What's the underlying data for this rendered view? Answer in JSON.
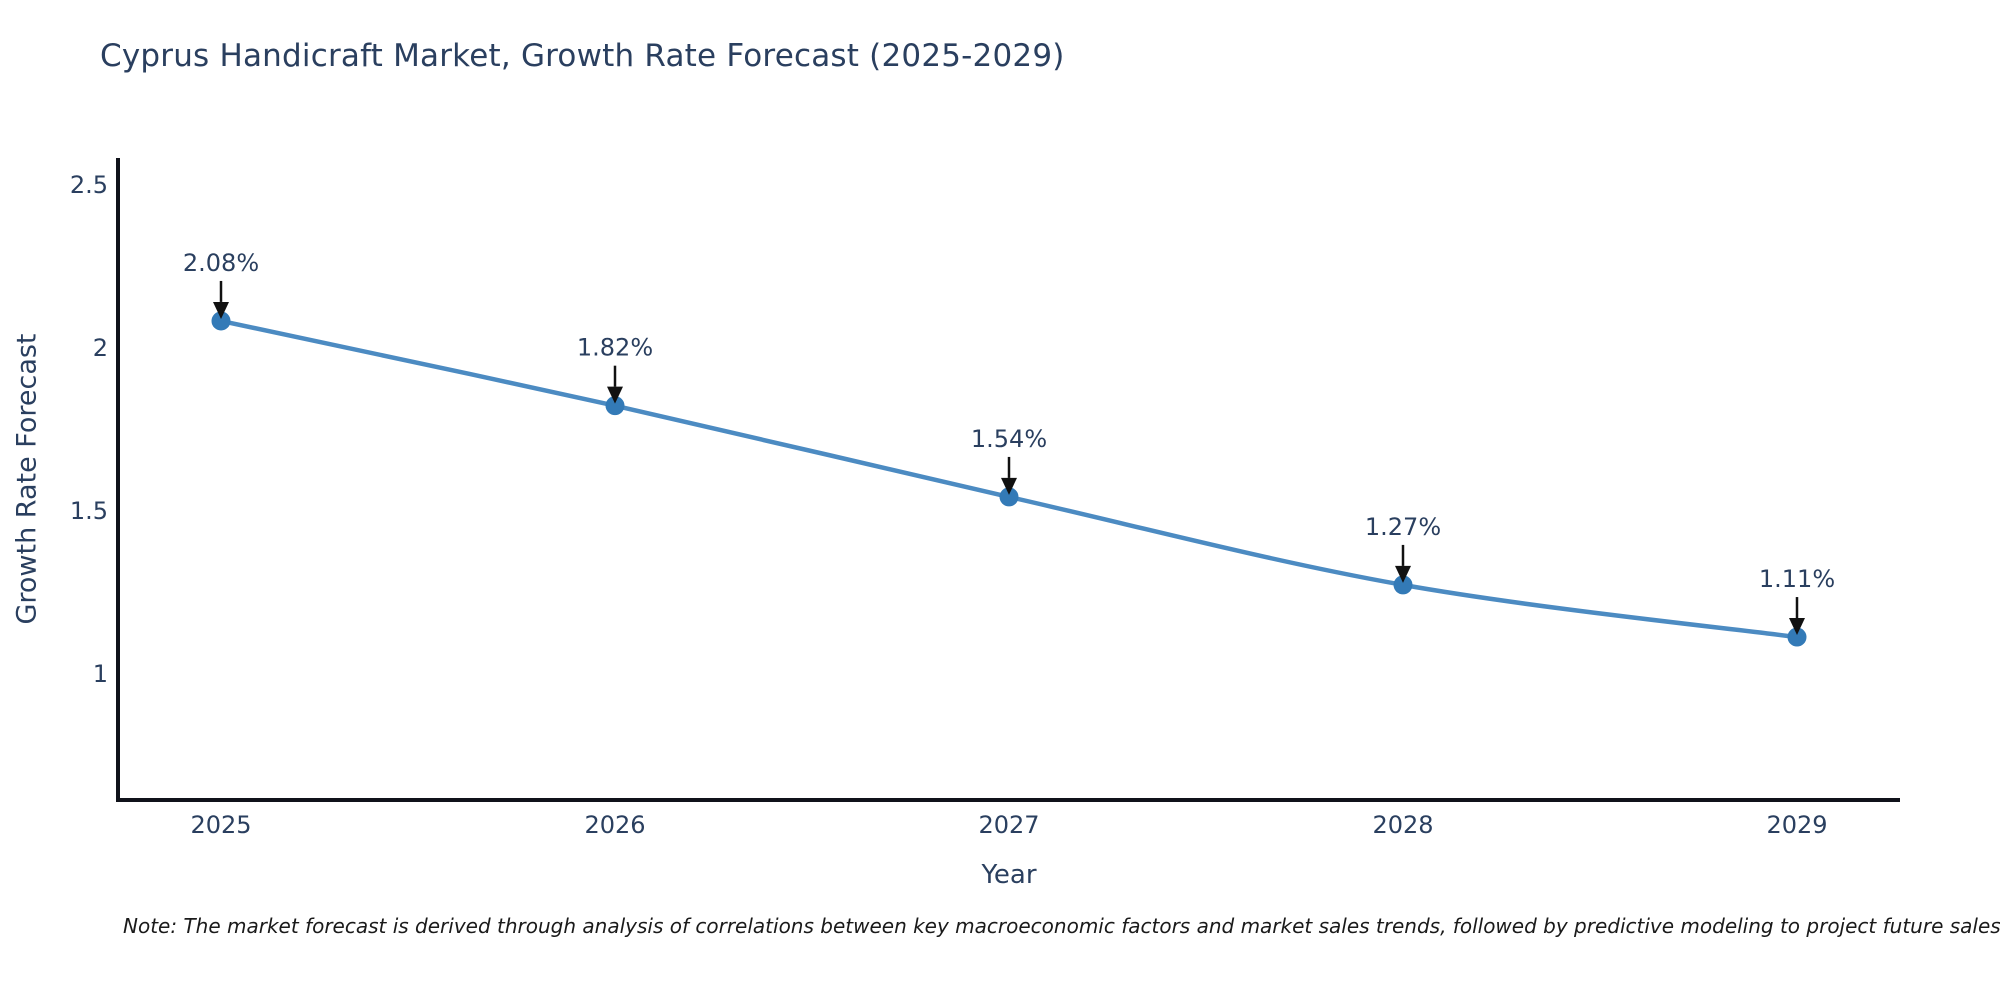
{
  "title": {
    "text": "Cyprus Handicraft Market, Growth Rate Forecast (2025-2029)"
  },
  "note": "Note: The market forecast is derived through analysis of correlations between key macroeconomic factors and market sales trends, followed by predictive modeling to project future sales",
  "chart_data": {
    "type": "line",
    "title": "Cyprus Handicraft Market, Growth Rate Forecast (2025-2029)",
    "xlabel": "Year",
    "ylabel": "Growth Rate Forecast",
    "categories": [
      "2025",
      "2026",
      "2027",
      "2028",
      "2029"
    ],
    "series": [
      {
        "name": "Growth Rate Forecast",
        "values": [
          2.08,
          1.82,
          1.54,
          1.27,
          1.11
        ]
      }
    ],
    "point_labels": [
      "2.08%",
      "1.82%",
      "1.54%",
      "1.27%",
      "1.11%"
    ],
    "y_ticks": [
      {
        "value": 2.5,
        "label": "2.5"
      },
      {
        "value": 2.0,
        "label": "2"
      },
      {
        "value": 1.5,
        "label": "1.5"
      },
      {
        "value": 1.0,
        "label": "1"
      }
    ],
    "ylim": [
      0.61,
      2.58
    ],
    "grid": false,
    "legend": "none",
    "colors": {
      "line": "#4c8bc2",
      "marker": "#337ab7",
      "axis": "#10121a",
      "tick_label": "#2a3f5f",
      "annotation_text": "#2a3f5f",
      "arrow": "#111111"
    }
  }
}
